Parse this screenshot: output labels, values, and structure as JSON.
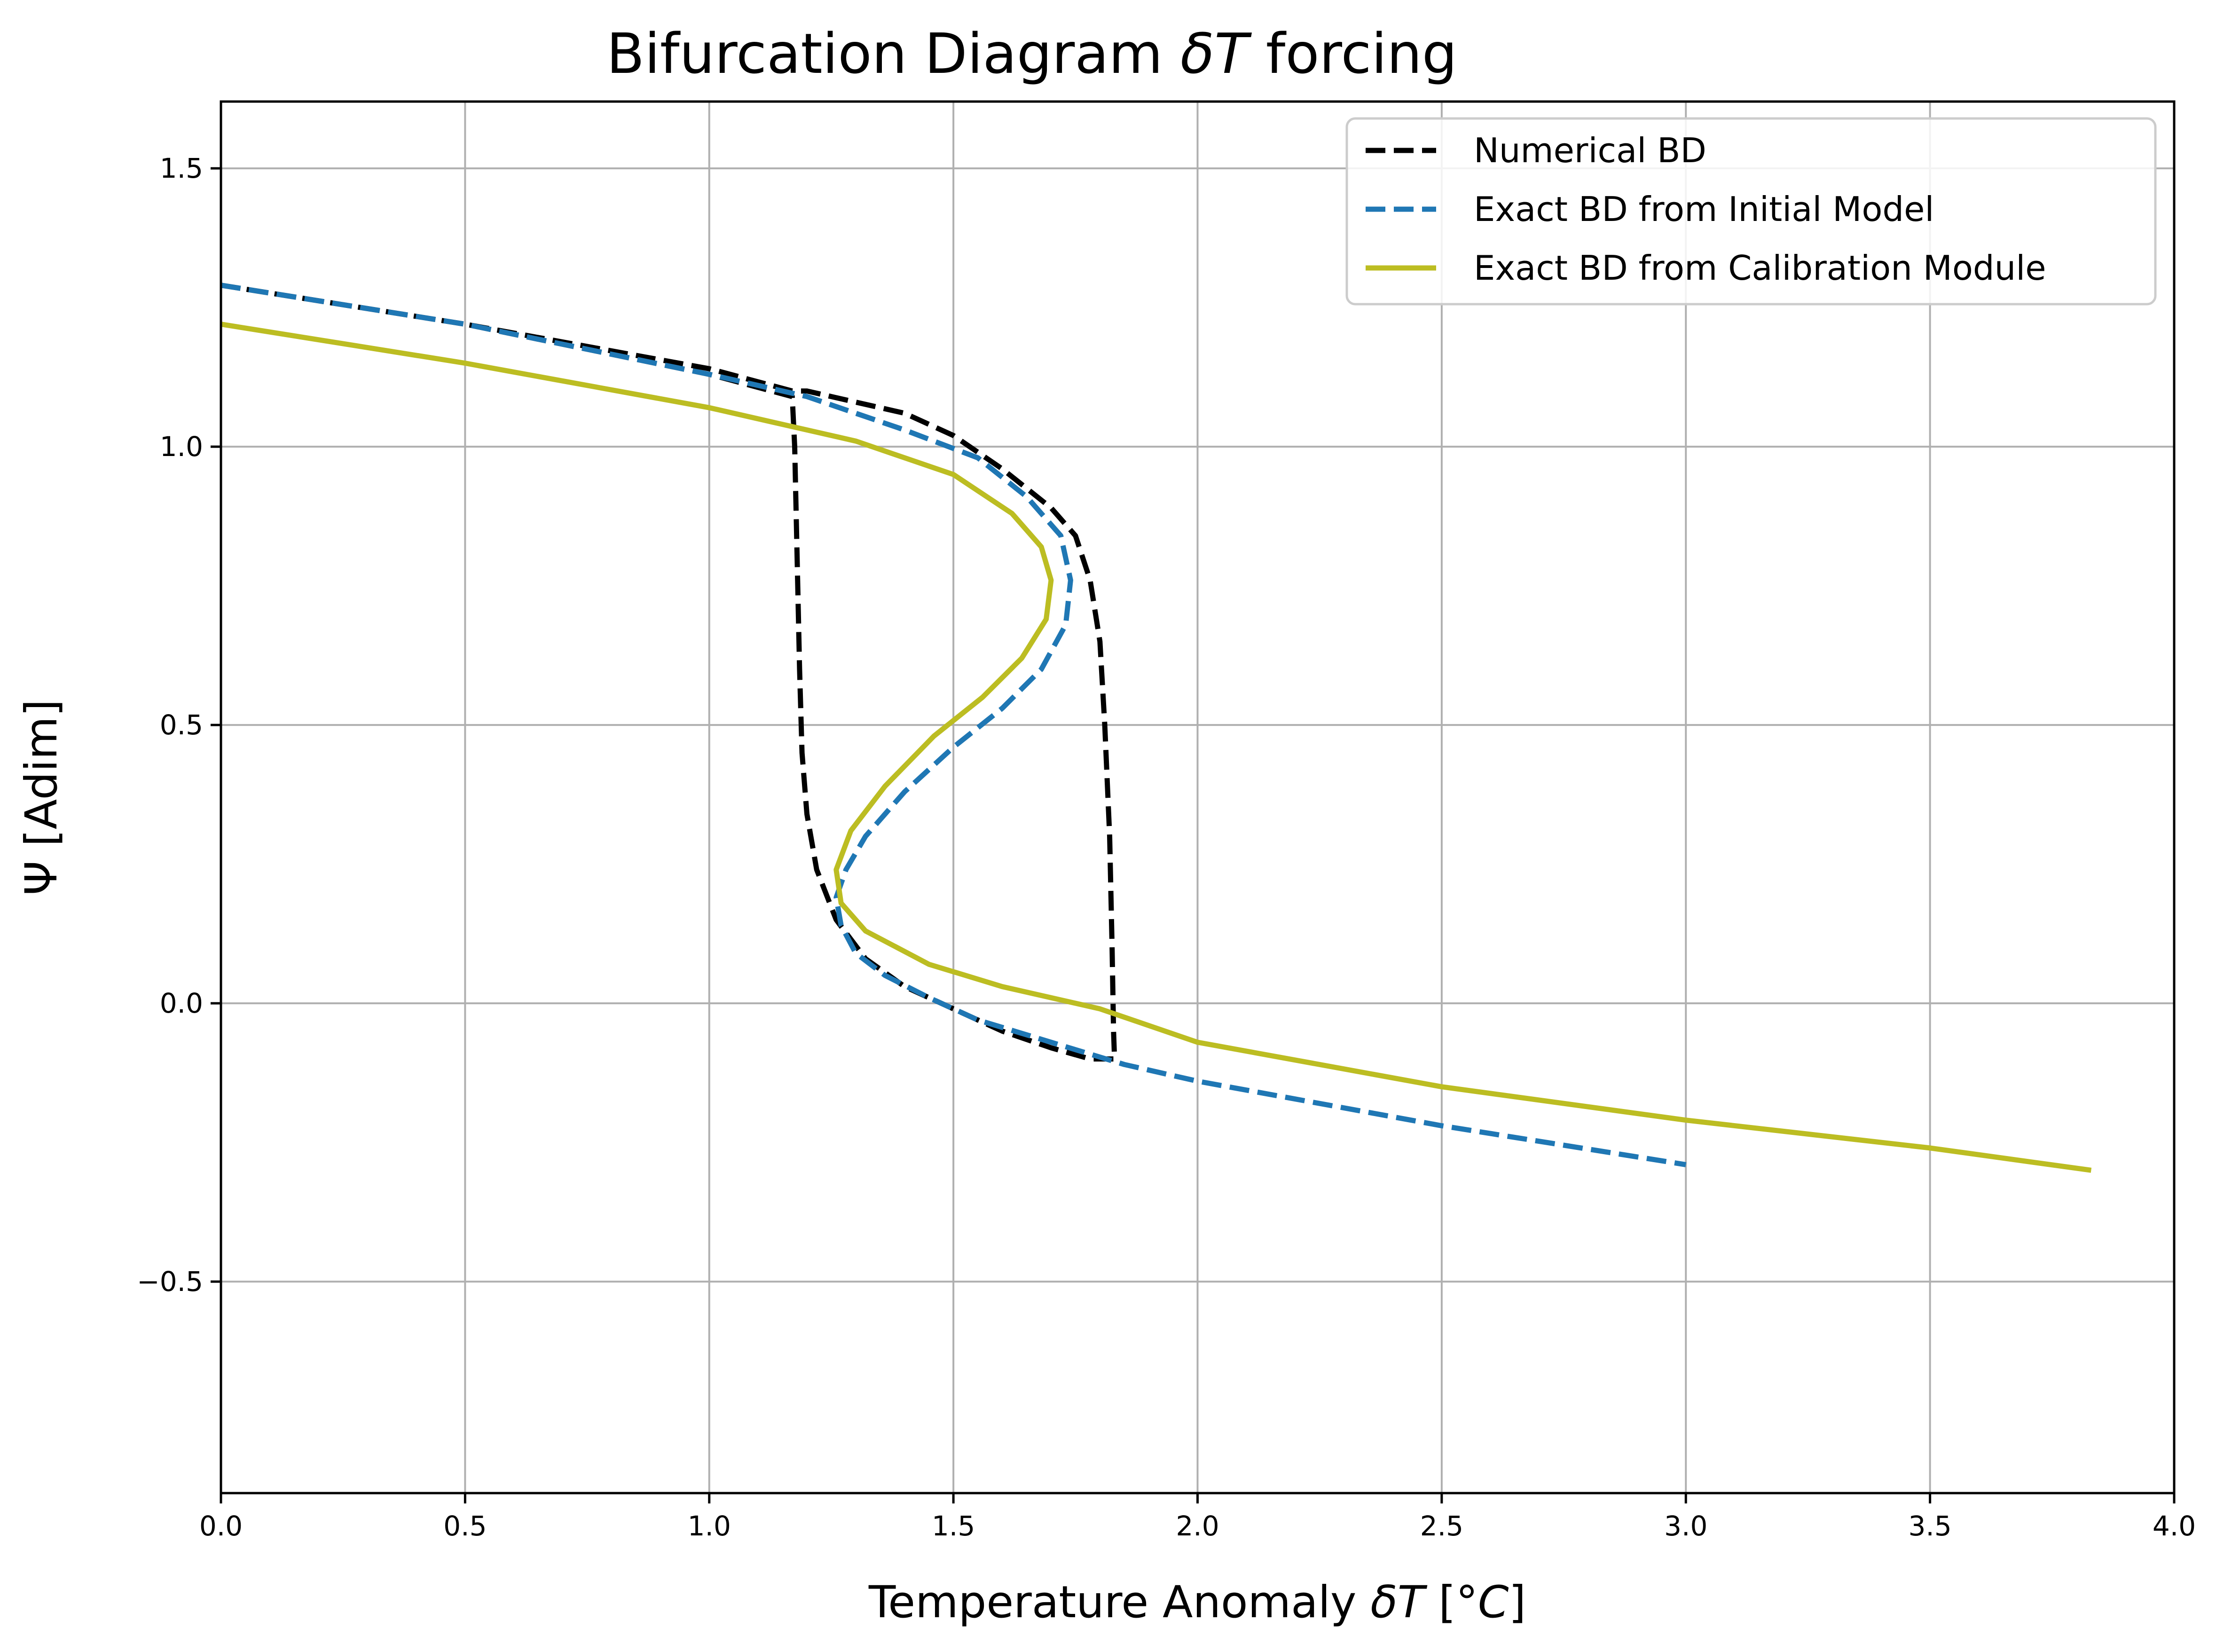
{
  "chart_data": {
    "type": "line",
    "title": "Bifurcation Diagram δT forcing",
    "xlabel": "Temperature Anomaly δT [°C]",
    "ylabel": "Ψ [Adim]",
    "xlim": [
      0.0,
      4.0
    ],
    "ylim": [
      -0.88,
      1.62
    ],
    "grid": true,
    "legend_position": "top-right",
    "xticks": [
      0.0,
      0.5,
      1.0,
      1.5,
      2.0,
      2.5,
      3.0,
      3.5,
      4.0
    ],
    "xtick_labels": [
      "0.0",
      "0.5",
      "1.0",
      "1.5",
      "2.0",
      "2.5",
      "3.0",
      "3.5",
      "4.0"
    ],
    "yticks": [
      -0.5,
      0.0,
      0.5,
      1.0,
      1.5
    ],
    "ytick_labels": [
      "−0.5",
      "0.0",
      "0.5",
      "1.0",
      "1.5"
    ],
    "series": [
      {
        "name": "Numerical BD",
        "color": "#000000",
        "style": "dashed",
        "x": [
          0.0,
          0.5,
          1.0,
          1.17,
          1.175,
          1.18,
          1.185,
          1.19,
          1.2,
          1.22,
          1.26,
          1.32,
          1.4,
          1.5,
          1.6,
          1.7,
          1.78,
          1.83,
          1.828,
          1.825,
          1.82,
          1.81,
          1.8,
          1.78,
          1.75,
          1.7,
          1.6,
          1.5,
          1.4,
          1.3,
          1.2,
          1.17,
          1.0,
          0.5,
          0.0
        ],
        "y": [
          1.29,
          1.22,
          1.13,
          1.09,
          1.0,
          0.8,
          0.6,
          0.45,
          0.34,
          0.24,
          0.15,
          0.08,
          0.03,
          -0.01,
          -0.05,
          -0.08,
          -0.1,
          -0.1,
          -0.05,
          0.1,
          0.3,
          0.5,
          0.65,
          0.76,
          0.84,
          0.89,
          0.96,
          1.02,
          1.06,
          1.08,
          1.1,
          1.1,
          1.14,
          1.22,
          1.29
        ],
        "path_note": ""
      },
      {
        "name": "Exact BD from Initial Model",
        "color": "#1f77b4",
        "style": "dashed",
        "x": [
          0.0,
          0.5,
          1.0,
          1.2,
          1.4,
          1.55,
          1.65,
          1.72,
          1.74,
          1.73,
          1.68,
          1.6,
          1.5,
          1.4,
          1.32,
          1.28,
          1.26,
          1.27,
          1.3,
          1.36,
          1.45,
          1.55,
          1.7,
          1.85,
          2.0,
          2.5,
          3.0
        ],
        "y": [
          1.29,
          1.22,
          1.13,
          1.09,
          1.03,
          0.98,
          0.91,
          0.84,
          0.76,
          0.68,
          0.6,
          0.53,
          0.46,
          0.38,
          0.3,
          0.24,
          0.19,
          0.14,
          0.09,
          0.05,
          0.01,
          -0.03,
          -0.07,
          -0.11,
          -0.14,
          -0.22,
          -0.29
        ]
      },
      {
        "name": "Exact BD from Calibration Module",
        "color": "#bcbd22",
        "style": "solid",
        "x": [
          0.0,
          0.5,
          1.0,
          1.3,
          1.5,
          1.62,
          1.68,
          1.7,
          1.69,
          1.64,
          1.56,
          1.46,
          1.36,
          1.29,
          1.26,
          1.27,
          1.32,
          1.45,
          1.6,
          1.8,
          2.0,
          2.5,
          3.0,
          3.5,
          3.83
        ],
        "y": [
          1.22,
          1.15,
          1.07,
          1.01,
          0.95,
          0.88,
          0.82,
          0.76,
          0.69,
          0.62,
          0.55,
          0.48,
          0.39,
          0.31,
          0.24,
          0.18,
          0.13,
          0.07,
          0.03,
          -0.01,
          -0.07,
          -0.15,
          -0.21,
          -0.26,
          -0.3
        ]
      }
    ]
  }
}
